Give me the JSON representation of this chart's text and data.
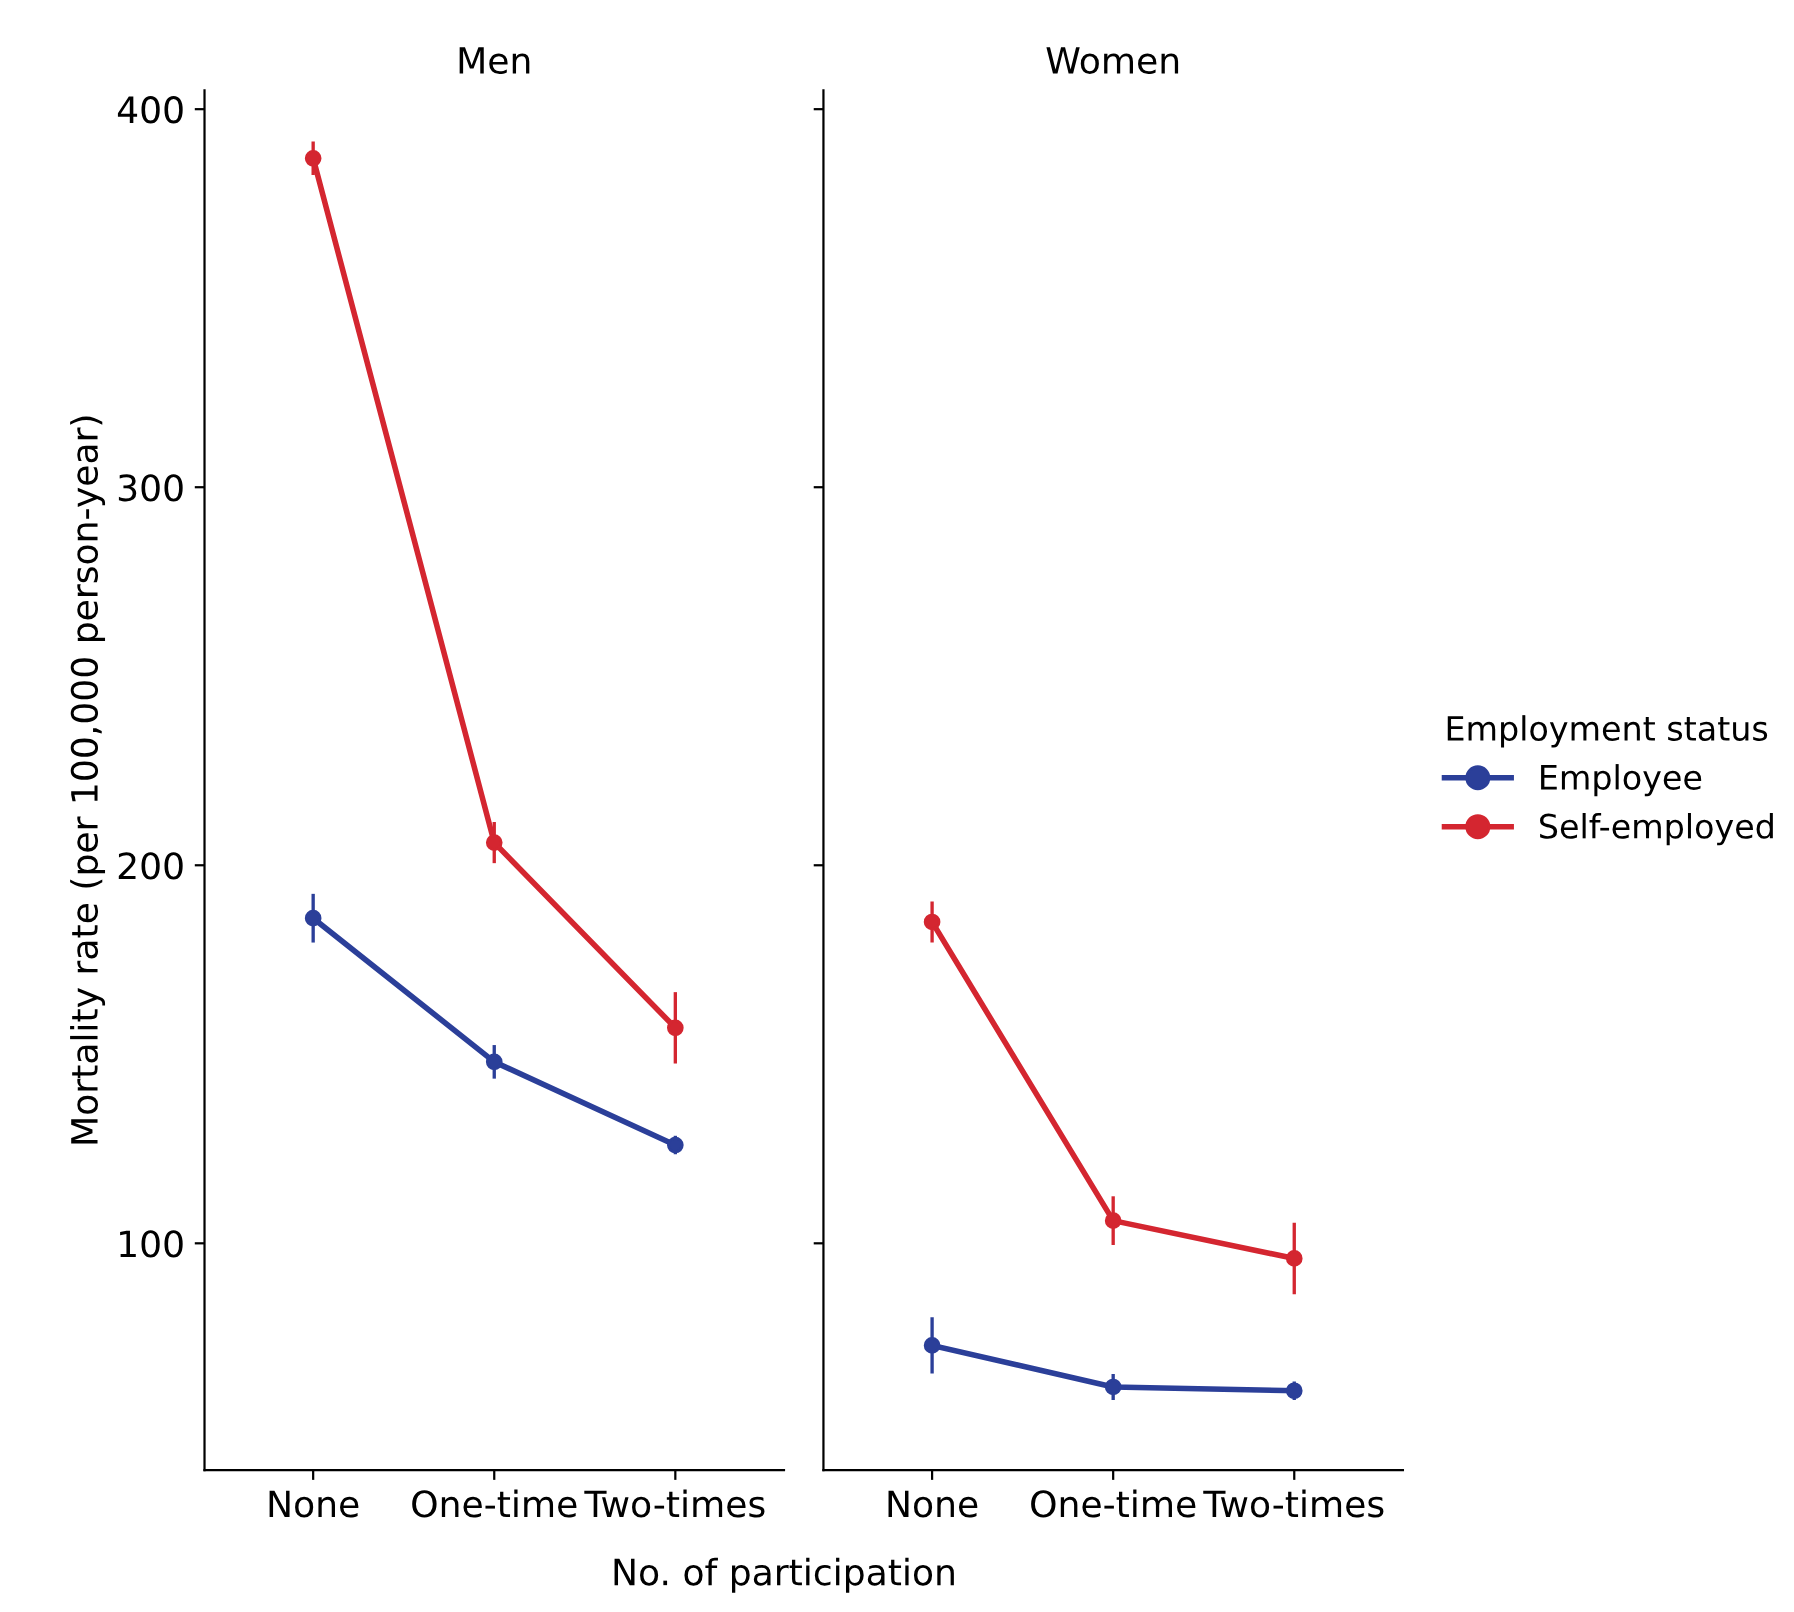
{
  "chart_data": [
    {
      "type": "line",
      "title": "Men",
      "xlabel": "No. of participation",
      "ylabel": "Mortality rate (per 100,000 person-year)",
      "categories": [
        "None",
        "One-time",
        "Two-times"
      ],
      "ylim": [
        40,
        405
      ],
      "yticks": [
        100,
        200,
        300,
        400
      ],
      "marker": "circle",
      "line_style": "solid",
      "grid": false,
      "series": [
        {
          "color": "#2b3f99",
          "values": [
            186,
            148,
            126
          ],
          "errors": [
            6,
            4,
            2
          ]
        },
        {
          "color": "#d42630",
          "values": [
            387,
            206,
            157
          ],
          "errors": [
            4,
            5,
            9
          ]
        }
      ]
    },
    {
      "type": "line",
      "title": "Women",
      "legend_title": "Employment status",
      "categories": [
        "None",
        "One-time",
        "Two-times"
      ],
      "ylim": [
        40,
        405
      ],
      "yticks": [
        100,
        200,
        300,
        400
      ],
      "tick_labels": "x",
      "marker": "circle",
      "line_style": "solid",
      "grid": false,
      "legend": "right",
      "series": [
        {
          "name": "Employee",
          "color": "#2b3f99",
          "values": [
            73,
            62,
            61
          ],
          "errors": [
            7,
            3,
            2
          ]
        },
        {
          "name": "Self-employed",
          "color": "#d42630",
          "values": [
            185,
            106,
            96
          ],
          "errors": [
            5,
            6,
            9
          ]
        }
      ]
    }
  ]
}
